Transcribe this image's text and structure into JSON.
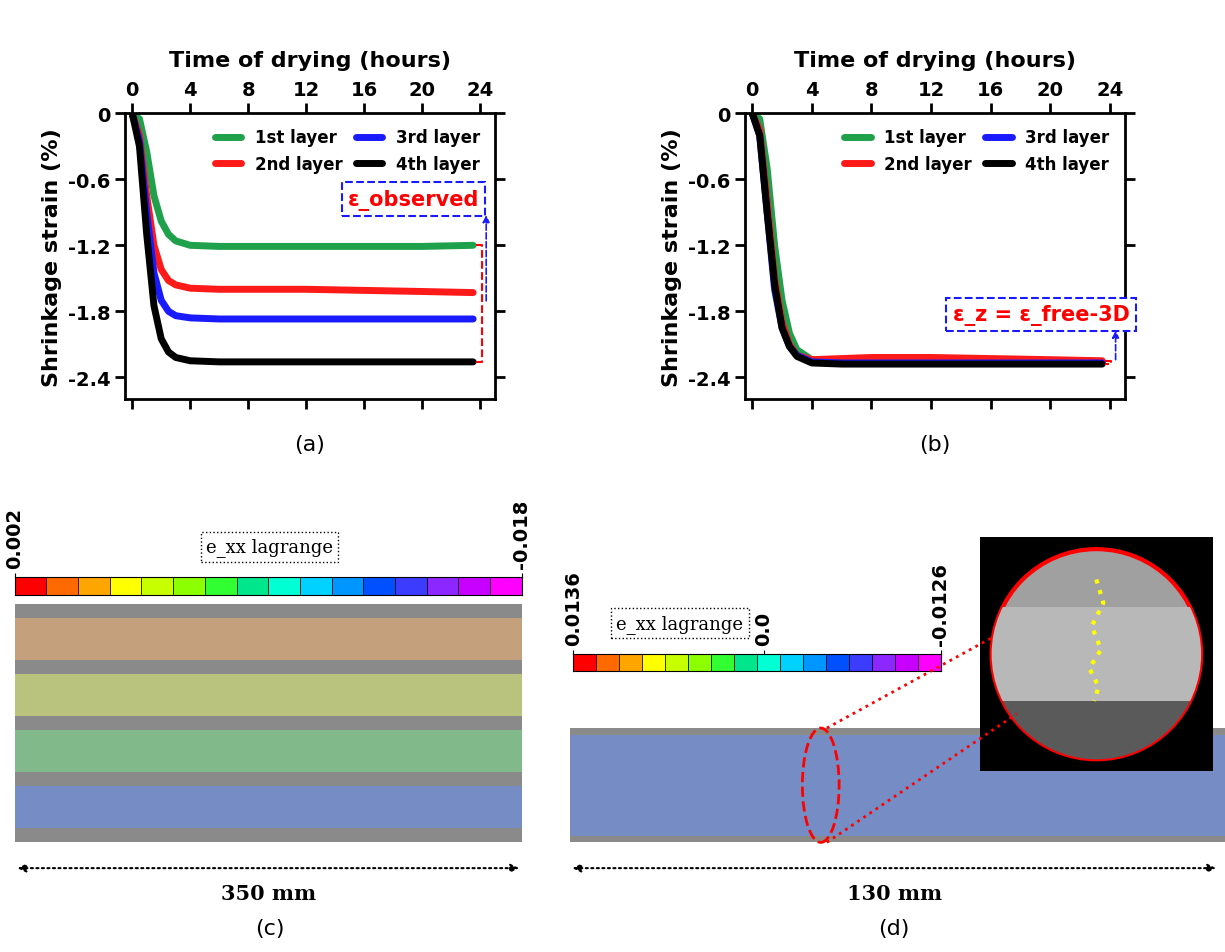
{
  "chart_data": [
    {
      "type": "line",
      "panel_label": "(a)",
      "x_label": "Time of drying (hours)",
      "y_label": "Shrinkage strain (%)",
      "x": [
        0,
        0.5,
        1,
        1.5,
        2,
        2.5,
        3,
        4,
        6,
        8,
        12,
        16,
        20,
        23.5
      ],
      "xlim": [
        -0.5,
        25
      ],
      "xticks": [
        0,
        4,
        8,
        12,
        16,
        20,
        24
      ],
      "ylim": [
        -2.6,
        0
      ],
      "yticks": [
        -2.4,
        -1.8,
        -1.2,
        -0.6,
        0
      ],
      "legend": "upper right",
      "annotations": [
        {
          "text": "ε_observed"
        }
      ],
      "series": [
        {
          "name": "1st layer",
          "color": "#1fa04a",
          "values": [
            0,
            -0.05,
            -0.35,
            -0.75,
            -0.98,
            -1.1,
            -1.16,
            -1.2,
            -1.21,
            -1.21,
            -1.21,
            -1.21,
            -1.21,
            -1.2
          ]
        },
        {
          "name": "2nd layer",
          "color": "#ff1a1a",
          "values": [
            0,
            -0.2,
            -0.75,
            -1.2,
            -1.42,
            -1.52,
            -1.56,
            -1.59,
            -1.6,
            -1.6,
            -1.6,
            -1.61,
            -1.62,
            -1.63
          ]
        },
        {
          "name": "3rd layer",
          "color": "#1a1aff",
          "values": [
            0,
            -0.25,
            -0.9,
            -1.45,
            -1.7,
            -1.8,
            -1.84,
            -1.86,
            -1.87,
            -1.87,
            -1.87,
            -1.87,
            -1.87,
            -1.87
          ]
        },
        {
          "name": "4th layer",
          "color": "#000000",
          "values": [
            0,
            -0.3,
            -1.1,
            -1.75,
            -2.05,
            -2.17,
            -2.22,
            -2.25,
            -2.26,
            -2.26,
            -2.26,
            -2.26,
            -2.26,
            -2.26
          ]
        }
      ]
    },
    {
      "type": "line",
      "panel_label": "(b)",
      "x_label": "Time of drying (hours)",
      "y_label": "Shrinkage strain (%)",
      "x": [
        0,
        0.5,
        1,
        1.5,
        2,
        2.5,
        3,
        4,
        6,
        8,
        12,
        16,
        20,
        23.5
      ],
      "xlim": [
        -0.5,
        25
      ],
      "xticks": [
        0,
        4,
        8,
        12,
        16,
        20,
        24
      ],
      "ylim": [
        -2.6,
        0
      ],
      "yticks": [
        -2.4,
        -1.8,
        -1.2,
        -0.6,
        0
      ],
      "legend": "upper right",
      "annotations": [
        {
          "text": "ε_z = ε_free-3D"
        }
      ],
      "series": [
        {
          "name": "1st layer",
          "color": "#1fa04a",
          "values": [
            0,
            -0.05,
            -0.5,
            -1.2,
            -1.7,
            -2.0,
            -2.15,
            -2.24,
            -2.25,
            -2.25,
            -2.24,
            -2.25,
            -2.26,
            -2.26
          ]
        },
        {
          "name": "2nd layer",
          "color": "#ff1a1a",
          "values": [
            0,
            -0.15,
            -0.8,
            -1.5,
            -1.9,
            -2.1,
            -2.2,
            -2.24,
            -2.23,
            -2.22,
            -2.22,
            -2.23,
            -2.24,
            -2.25
          ]
        },
        {
          "name": "3rd layer",
          "color": "#1a1aff",
          "values": [
            0,
            -0.2,
            -0.9,
            -1.6,
            -1.95,
            -2.12,
            -2.2,
            -2.26,
            -2.27,
            -2.27,
            -2.27,
            -2.27,
            -2.27,
            -2.27
          ]
        },
        {
          "name": "4th layer",
          "color": "#000000",
          "values": [
            0,
            -0.2,
            -0.9,
            -1.55,
            -1.95,
            -2.12,
            -2.21,
            -2.27,
            -2.28,
            -2.28,
            -2.28,
            -2.28,
            -2.28,
            -2.28
          ]
        }
      ]
    }
  ],
  "images": [
    {
      "panel_label": "(c)",
      "colorbar_label": "e_xx lagrange",
      "colorbar_range": [
        0.002,
        -0.018
      ],
      "colorbar_ticks": [
        0.002,
        -0.018
      ],
      "width_label": "350 mm",
      "layers": 4
    },
    {
      "panel_label": "(d)",
      "colorbar_label": "e_xx lagrange",
      "colorbar_range": [
        0.0136,
        -0.0126
      ],
      "colorbar_ticks": [
        0.0136,
        0.0,
        -0.0126
      ],
      "width_label": "130 mm",
      "layers": 1
    }
  ]
}
